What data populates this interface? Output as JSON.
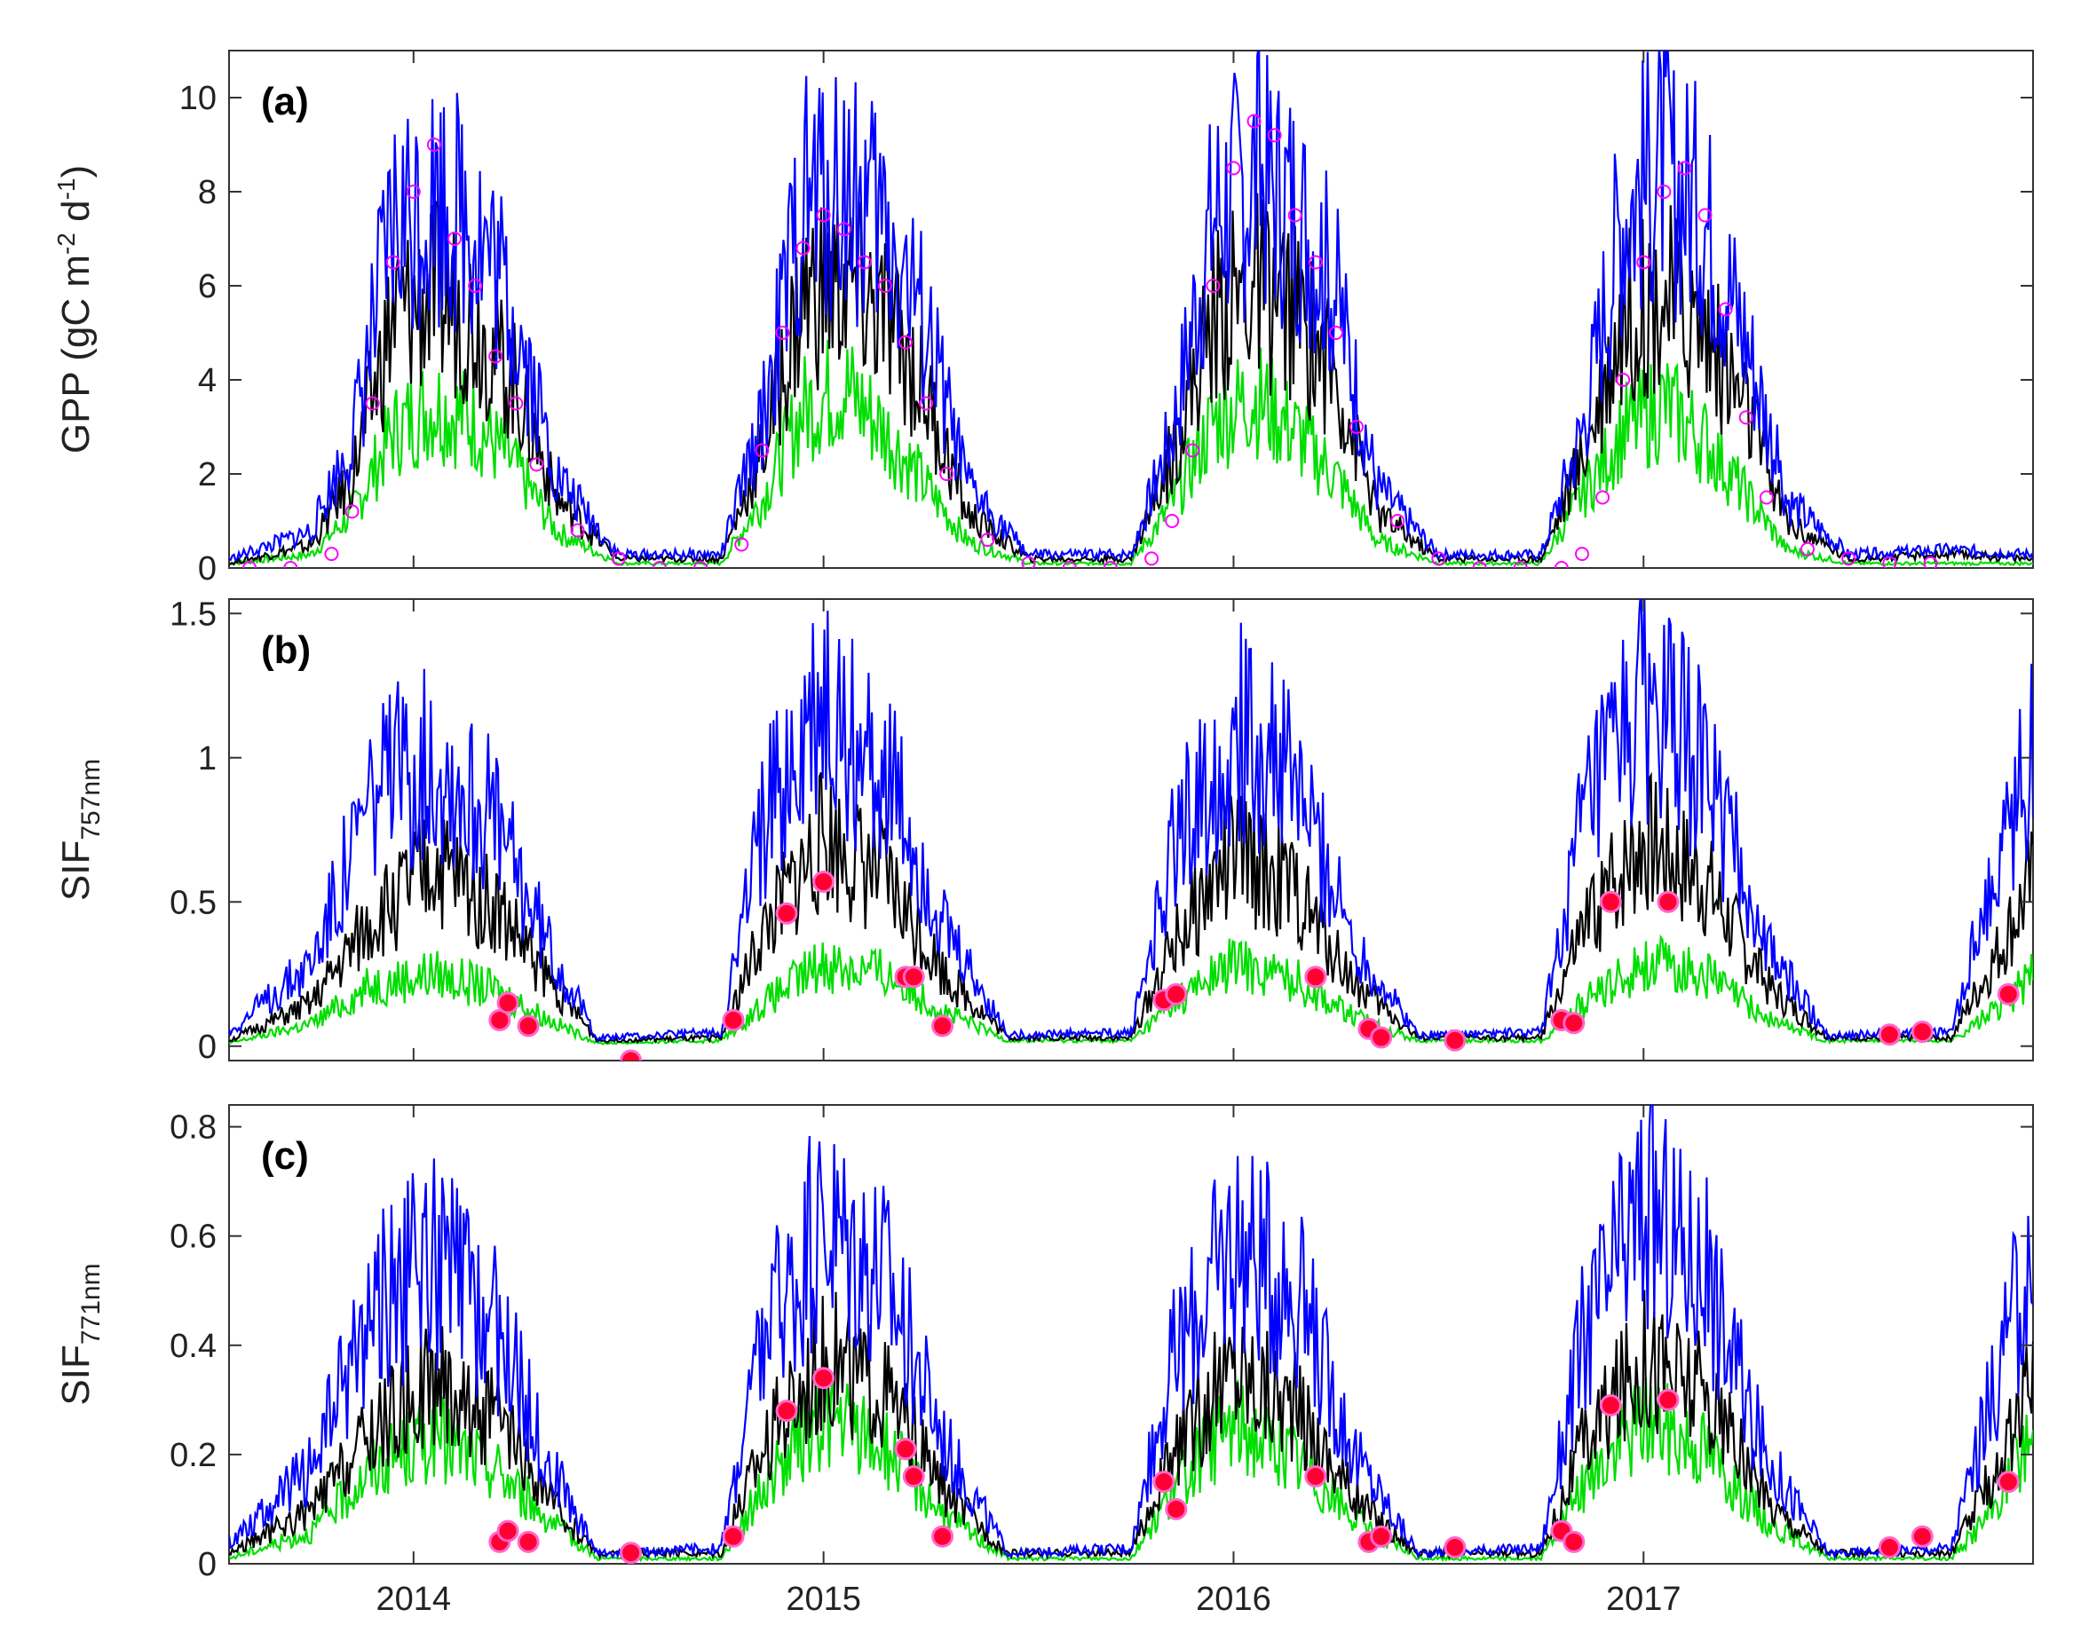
{
  "x_ticks": [
    "2014",
    "2015",
    "2016",
    "2017"
  ],
  "colors": {
    "blue_series": "#0000ff",
    "black_series": "#000000",
    "green_series": "#00dd00",
    "observed_gpp_marker": "#ff00ff",
    "observed_sif_marker": "#ff0033",
    "observed_sif_marker_edge": "#ff66cc"
  },
  "chart_data": [
    {
      "type": "line",
      "panel_label": "(a)",
      "ylabel": {
        "main": "GPP (gC m",
        "sup1": "-2",
        "mid": " d",
        "sup2": "-1",
        "end": ")"
      },
      "xlim": [
        2013.55,
        2017.95
      ],
      "ylim": [
        0,
        11
      ],
      "yticks": [
        0,
        2,
        4,
        6,
        8,
        10
      ],
      "grid": false,
      "series": [
        {
          "color_key": "green_series",
          "x": [
            2013.55,
            2013.75,
            2013.85,
            2013.95,
            2014.05,
            2014.15,
            2014.25,
            2014.35,
            2014.5,
            2014.75,
            2014.85,
            2014.95,
            2015.05,
            2015.15,
            2015.25,
            2015.35,
            2015.5,
            2015.75,
            2015.85,
            2015.95,
            2016.05,
            2016.15,
            2016.25,
            2016.35,
            2016.5,
            2016.75,
            2016.85,
            2016.95,
            2017.05,
            2017.15,
            2017.25,
            2017.35,
            2017.5,
            2017.75,
            2017.95
          ],
          "values": [
            0.1,
            0.3,
            1.2,
            3.0,
            3.6,
            3.2,
            2.2,
            0.8,
            0.1,
            0.1,
            1.5,
            3.5,
            4.0,
            3.0,
            1.8,
            0.6,
            0.1,
            0.1,
            1.4,
            3.2,
            3.8,
            3.0,
            2.0,
            0.6,
            0.1,
            0.1,
            1.6,
            3.0,
            3.6,
            2.8,
            1.6,
            0.4,
            0.1,
            0.1,
            0.1
          ]
        },
        {
          "color_key": "black_series",
          "x": [
            2013.55,
            2013.75,
            2013.85,
            2013.95,
            2014.05,
            2014.15,
            2014.25,
            2014.35,
            2014.5,
            2014.75,
            2014.85,
            2014.95,
            2015.05,
            2015.15,
            2015.25,
            2015.35,
            2015.5,
            2015.75,
            2015.85,
            2015.95,
            2016.05,
            2016.15,
            2016.25,
            2016.35,
            2016.5,
            2016.75,
            2016.85,
            2016.95,
            2017.05,
            2017.15,
            2017.25,
            2017.35,
            2017.5,
            2017.75,
            2017.95
          ],
          "values": [
            0.1,
            0.5,
            2.0,
            5.5,
            6.0,
            5.5,
            4.0,
            1.5,
            0.2,
            0.2,
            2.5,
            6.0,
            6.2,
            5.5,
            3.8,
            1.2,
            0.2,
            0.2,
            2.5,
            5.5,
            6.2,
            5.6,
            4.2,
            1.2,
            0.2,
            0.2,
            2.4,
            5.5,
            6.0,
            5.2,
            3.5,
            1.0,
            0.2,
            0.3,
            0.2
          ]
        },
        {
          "color_key": "blue_series",
          "x": [
            2013.55,
            2013.75,
            2013.85,
            2013.95,
            2014.05,
            2014.15,
            2014.25,
            2014.35,
            2014.5,
            2014.75,
            2014.85,
            2014.95,
            2015.05,
            2015.15,
            2015.25,
            2015.35,
            2015.5,
            2015.75,
            2015.85,
            2015.95,
            2016.05,
            2016.15,
            2016.25,
            2016.35,
            2016.5,
            2016.75,
            2016.85,
            2016.95,
            2017.05,
            2017.15,
            2017.25,
            2017.35,
            2017.5,
            2017.75,
            2017.95
          ],
          "values": [
            0.2,
            0.8,
            2.8,
            7.5,
            8.2,
            7.6,
            5.5,
            2.0,
            0.3,
            0.3,
            3.2,
            8.0,
            8.4,
            7.5,
            5.2,
            1.8,
            0.3,
            0.3,
            3.0,
            7.8,
            8.6,
            8.0,
            6.0,
            1.8,
            0.3,
            0.3,
            3.0,
            7.8,
            8.8,
            7.6,
            5.0,
            1.5,
            0.3,
            0.4,
            0.3
          ]
        },
        {
          "color_key": "observed_gpp_marker",
          "marker": "open-circle",
          "x": [
            2013.6,
            2013.7,
            2013.8,
            2013.85,
            2013.9,
            2013.95,
            2014.0,
            2014.05,
            2014.1,
            2014.15,
            2014.2,
            2014.25,
            2014.3,
            2014.4,
            2014.5,
            2014.6,
            2014.7,
            2014.8,
            2014.85,
            2014.9,
            2014.95,
            2015.0,
            2015.05,
            2015.1,
            2015.15,
            2015.2,
            2015.25,
            2015.3,
            2015.4,
            2015.5,
            2015.6,
            2015.7,
            2015.8,
            2015.85,
            2015.9,
            2015.95,
            2016.0,
            2016.05,
            2016.1,
            2016.15,
            2016.2,
            2016.25,
            2016.3,
            2016.4,
            2016.5,
            2016.6,
            2016.7,
            2016.8,
            2016.85,
            2016.9,
            2016.95,
            2017.0,
            2017.05,
            2017.1,
            2017.15,
            2017.2,
            2017.25,
            2017.3,
            2017.4,
            2017.5,
            2017.6,
            2017.7
          ],
          "values": [
            0.0,
            0.0,
            0.3,
            1.2,
            3.5,
            6.5,
            8.0,
            9.0,
            7.0,
            6.0,
            4.5,
            3.5,
            2.2,
            0.8,
            0.2,
            0.0,
            0.0,
            0.5,
            2.5,
            5.0,
            6.8,
            7.5,
            7.2,
            6.5,
            6.0,
            4.8,
            3.5,
            2.0,
            0.6,
            0.1,
            0.0,
            0.0,
            0.2,
            1.0,
            2.5,
            6.0,
            8.5,
            9.5,
            9.2,
            7.5,
            6.5,
            5.0,
            3.0,
            1.0,
            0.2,
            0.0,
            0.0,
            0.0,
            0.3,
            1.5,
            4.0,
            6.5,
            8.0,
            8.5,
            7.5,
            5.5,
            3.2,
            1.5,
            0.4,
            0.2,
            0.1,
            0.1
          ]
        }
      ]
    },
    {
      "type": "line",
      "panel_label": "(b)",
      "ylabel": {
        "main": "SIF",
        "sub": "757nm"
      },
      "xlim": [
        2013.55,
        2017.95
      ],
      "ylim": [
        -0.05,
        1.55
      ],
      "yticks": [
        0,
        0.5,
        1,
        1.5
      ],
      "ytick_labels": [
        "0",
        "0.5",
        "1",
        "1.5"
      ],
      "grid": false,
      "series": [
        {
          "color_key": "green_series",
          "x": [
            2013.55,
            2013.75,
            2013.9,
            2014.05,
            2014.2,
            2014.35,
            2014.45,
            2014.75,
            2014.85,
            2015.0,
            2015.15,
            2015.3,
            2015.45,
            2015.75,
            2015.85,
            2016.0,
            2016.15,
            2016.3,
            2016.45,
            2016.75,
            2016.85,
            2017.0,
            2017.15,
            2017.3,
            2017.45,
            2017.75,
            2017.85,
            2017.95
          ],
          "values": [
            0.01,
            0.08,
            0.22,
            0.26,
            0.2,
            0.08,
            0.01,
            0.02,
            0.15,
            0.3,
            0.26,
            0.12,
            0.02,
            0.02,
            0.15,
            0.3,
            0.24,
            0.1,
            0.02,
            0.02,
            0.15,
            0.3,
            0.26,
            0.1,
            0.02,
            0.02,
            0.12,
            0.25
          ]
        },
        {
          "color_key": "black_series",
          "x": [
            2013.55,
            2013.75,
            2013.9,
            2014.05,
            2014.2,
            2014.35,
            2014.45,
            2014.75,
            2014.85,
            2015.0,
            2015.15,
            2015.3,
            2015.45,
            2015.75,
            2015.85,
            2016.0,
            2016.15,
            2016.3,
            2016.45,
            2016.75,
            2016.85,
            2017.0,
            2017.15,
            2017.3,
            2017.45,
            2017.75,
            2017.85,
            2017.95
          ],
          "values": [
            0.02,
            0.15,
            0.45,
            0.65,
            0.5,
            0.2,
            0.02,
            0.03,
            0.4,
            0.75,
            0.6,
            0.25,
            0.03,
            0.03,
            0.35,
            0.7,
            0.55,
            0.22,
            0.03,
            0.03,
            0.4,
            0.75,
            0.6,
            0.22,
            0.03,
            0.03,
            0.3,
            0.6
          ]
        },
        {
          "color_key": "blue_series",
          "x": [
            2013.55,
            2013.75,
            2013.9,
            2014.05,
            2014.2,
            2014.35,
            2014.45,
            2014.75,
            2014.85,
            2015.0,
            2015.15,
            2015.3,
            2015.45,
            2015.75,
            2015.85,
            2016.0,
            2016.15,
            2016.3,
            2016.45,
            2016.75,
            2016.85,
            2017.0,
            2017.15,
            2017.3,
            2017.45,
            2017.75,
            2017.85,
            2017.95
          ],
          "values": [
            0.05,
            0.3,
            0.9,
            1.05,
            0.8,
            0.3,
            0.03,
            0.05,
            0.8,
            1.2,
            1.0,
            0.4,
            0.04,
            0.05,
            0.7,
            1.15,
            0.95,
            0.35,
            0.04,
            0.05,
            0.8,
            1.25,
            1.0,
            0.35,
            0.04,
            0.05,
            0.6,
            1.1
          ]
        },
        {
          "color_key": "observed_sif_marker",
          "marker": "filled-circle",
          "x": [
            2014.21,
            2014.23,
            2014.28,
            2014.53,
            2014.78,
            2014.91,
            2015.0,
            2015.2,
            2015.22,
            2015.29,
            2015.83,
            2015.86,
            2016.2,
            2016.33,
            2016.36,
            2016.54,
            2016.8,
            2016.83,
            2016.92,
            2017.06,
            2017.6,
            2017.68,
            2017.89
          ],
          "values": [
            0.09,
            0.15,
            0.07,
            -0.05,
            0.09,
            0.46,
            0.57,
            0.24,
            0.24,
            0.07,
            0.16,
            0.18,
            0.24,
            0.06,
            0.03,
            0.02,
            0.09,
            0.08,
            0.5,
            0.5,
            0.04,
            0.05,
            0.18
          ]
        }
      ]
    },
    {
      "type": "line",
      "panel_label": "(c)",
      "ylabel": {
        "main": "SIF",
        "sub": "771nm"
      },
      "xlim": [
        2013.55,
        2017.95
      ],
      "ylim": [
        0,
        0.84
      ],
      "yticks": [
        0,
        0.2,
        0.4,
        0.6,
        0.8
      ],
      "ytick_labels": [
        "0",
        "0.2",
        "0.4",
        "0.6",
        "0.8"
      ],
      "grid": false,
      "series": [
        {
          "color_key": "green_series",
          "x": [
            2013.55,
            2013.75,
            2013.9,
            2014.05,
            2014.2,
            2014.35,
            2014.45,
            2014.75,
            2014.85,
            2015.0,
            2015.15,
            2015.3,
            2015.45,
            2015.75,
            2015.85,
            2016.0,
            2016.15,
            2016.3,
            2016.45,
            2016.75,
            2016.85,
            2017.0,
            2017.15,
            2017.3,
            2017.45,
            2017.75,
            2017.85,
            2017.95
          ],
          "values": [
            0.01,
            0.06,
            0.18,
            0.24,
            0.18,
            0.07,
            0.01,
            0.01,
            0.14,
            0.28,
            0.22,
            0.09,
            0.01,
            0.01,
            0.14,
            0.27,
            0.2,
            0.08,
            0.01,
            0.01,
            0.14,
            0.28,
            0.22,
            0.08,
            0.01,
            0.01,
            0.1,
            0.25
          ]
        },
        {
          "color_key": "black_series",
          "x": [
            2013.55,
            2013.75,
            2013.9,
            2014.05,
            2014.2,
            2014.35,
            2014.45,
            2014.75,
            2014.85,
            2015.0,
            2015.15,
            2015.3,
            2015.45,
            2015.75,
            2015.85,
            2016.0,
            2016.15,
            2016.3,
            2016.45,
            2016.75,
            2016.85,
            2017.0,
            2017.15,
            2017.3,
            2017.45,
            2017.75,
            2017.85,
            2017.95
          ],
          "values": [
            0.02,
            0.1,
            0.25,
            0.35,
            0.27,
            0.1,
            0.02,
            0.02,
            0.22,
            0.4,
            0.32,
            0.13,
            0.02,
            0.02,
            0.2,
            0.38,
            0.3,
            0.12,
            0.02,
            0.02,
            0.22,
            0.4,
            0.32,
            0.12,
            0.02,
            0.02,
            0.16,
            0.33
          ]
        },
        {
          "color_key": "blue_series",
          "x": [
            2013.55,
            2013.75,
            2013.9,
            2014.05,
            2014.2,
            2014.35,
            2014.45,
            2014.75,
            2014.85,
            2015.0,
            2015.15,
            2015.3,
            2015.45,
            2015.75,
            2015.85,
            2016.0,
            2016.15,
            2016.3,
            2016.45,
            2016.75,
            2016.85,
            2017.0,
            2017.15,
            2017.3,
            2017.45,
            2017.75,
            2017.85,
            2017.95
          ],
          "values": [
            0.04,
            0.18,
            0.48,
            0.58,
            0.45,
            0.16,
            0.02,
            0.03,
            0.42,
            0.65,
            0.55,
            0.22,
            0.02,
            0.03,
            0.38,
            0.62,
            0.52,
            0.2,
            0.02,
            0.03,
            0.42,
            0.68,
            0.55,
            0.2,
            0.02,
            0.03,
            0.32,
            0.6
          ]
        },
        {
          "color_key": "observed_sif_marker",
          "marker": "filled-circle",
          "x": [
            2014.21,
            2014.23,
            2014.28,
            2014.53,
            2014.78,
            2014.91,
            2015.0,
            2015.2,
            2015.22,
            2015.29,
            2015.83,
            2015.86,
            2016.2,
            2016.33,
            2016.36,
            2016.54,
            2016.8,
            2016.83,
            2016.92,
            2017.06,
            2017.6,
            2017.68,
            2017.89
          ],
          "values": [
            0.04,
            0.06,
            0.04,
            0.02,
            0.05,
            0.28,
            0.34,
            0.21,
            0.16,
            0.05,
            0.15,
            0.1,
            0.16,
            0.04,
            0.05,
            0.03,
            0.06,
            0.04,
            0.29,
            0.3,
            0.03,
            0.05,
            0.15
          ]
        }
      ]
    }
  ]
}
